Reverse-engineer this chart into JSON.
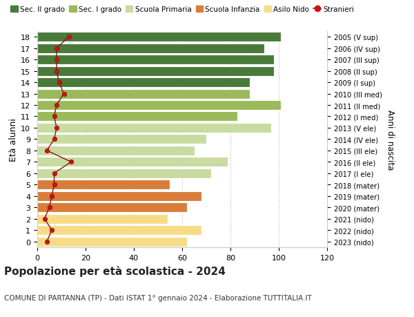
{
  "ages": [
    0,
    1,
    2,
    3,
    4,
    5,
    6,
    7,
    8,
    9,
    10,
    11,
    12,
    13,
    14,
    15,
    16,
    17,
    18
  ],
  "right_labels": [
    "2023 (nido)",
    "2022 (nido)",
    "2021 (nido)",
    "2020 (mater)",
    "2019 (mater)",
    "2018 (mater)",
    "2017 (I ele)",
    "2016 (II ele)",
    "2015 (III ele)",
    "2014 (IV ele)",
    "2013 (V ele)",
    "2012 (I med)",
    "2011 (II med)",
    "2010 (III med)",
    "2009 (I sup)",
    "2008 (II sup)",
    "2007 (III sup)",
    "2006 (IV sup)",
    "2005 (V sup)"
  ],
  "bar_values": [
    62,
    68,
    54,
    62,
    68,
    55,
    72,
    79,
    65,
    70,
    97,
    83,
    101,
    88,
    88,
    98,
    98,
    94,
    101
  ],
  "bar_colors": [
    "#f7dc88",
    "#f7dc88",
    "#f7dc88",
    "#d97c3a",
    "#d97c3a",
    "#d97c3a",
    "#c8dba0",
    "#c8dba0",
    "#c8dba0",
    "#c8dba0",
    "#c8dba0",
    "#9aba5a",
    "#9aba5a",
    "#9aba5a",
    "#4a7a3a",
    "#4a7a3a",
    "#4a7a3a",
    "#4a7a3a",
    "#4a7a3a"
  ],
  "stranieri_values": [
    4,
    6,
    3,
    5,
    6,
    7,
    7,
    14,
    4,
    7,
    8,
    7,
    8,
    11,
    9,
    8,
    8,
    8,
    13
  ],
  "legend_labels": [
    "Sec. II grado",
    "Sec. I grado",
    "Scuola Primaria",
    "Scuola Infanzia",
    "Asilo Nido",
    "Stranieri"
  ],
  "legend_colors": [
    "#4a7a3a",
    "#9aba5a",
    "#c8dba0",
    "#d97c3a",
    "#f7dc88",
    "#cc0000"
  ],
  "title": "Popolazione per età scolastica - 2024",
  "subtitle": "COMUNE DI PARTANNA (TP) - Dati ISTAT 1° gennaio 2024 - Elaborazione TUTTITALIA.IT",
  "ylabel_left": "Età alunni",
  "ylabel_right": "Anni di nascita",
  "xlim": [
    0,
    120
  ],
  "xticks": [
    0,
    20,
    40,
    60,
    80,
    100,
    120
  ],
  "bg_color": "#ffffff",
  "grid_color": "#cccccc"
}
